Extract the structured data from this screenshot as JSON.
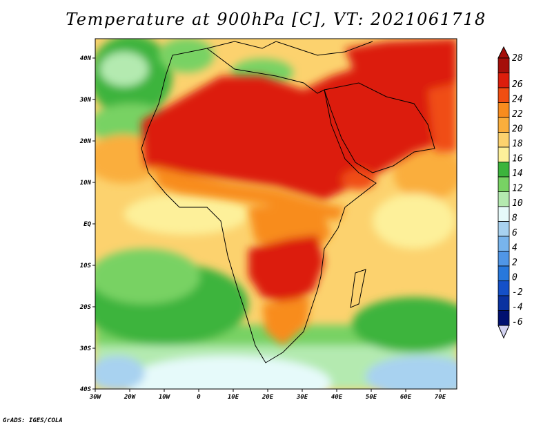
{
  "title": "Temperature at 900hPa [C], VT: 2021061718",
  "footer": "GrADS: IGES/COLA",
  "map": {
    "lon_range": [
      -30,
      76
    ],
    "lat_range": [
      -40,
      45
    ],
    "x_ticks": [
      "30W",
      "20W",
      "10W",
      "0",
      "10E",
      "20E",
      "30E",
      "40E",
      "50E",
      "60E",
      "70E"
    ],
    "y_ticks": [
      "40N",
      "30N",
      "20N",
      "10N",
      "EQ",
      "10S",
      "20S",
      "30S",
      "40S"
    ]
  },
  "colorbar": {
    "levels": [
      "28",
      "26",
      "24",
      "22",
      "20",
      "18",
      "16",
      "14",
      "12",
      "10",
      "8",
      "6",
      "4",
      "2",
      "0",
      "-2",
      "-4",
      "-6"
    ],
    "colors": [
      "#a50f0a",
      "#dc1e0c",
      "#f04e12",
      "#f88c1e",
      "#faae3c",
      "#fcd26e",
      "#fdf09a",
      "#3cb43c",
      "#78d264",
      "#b4eab0",
      "#e6fafa",
      "#a8d2f0",
      "#78b4ec",
      "#5096e6",
      "#2878dc",
      "#1450c8",
      "#0a32a0",
      "#001070",
      "#d2d2f0"
    ]
  }
}
